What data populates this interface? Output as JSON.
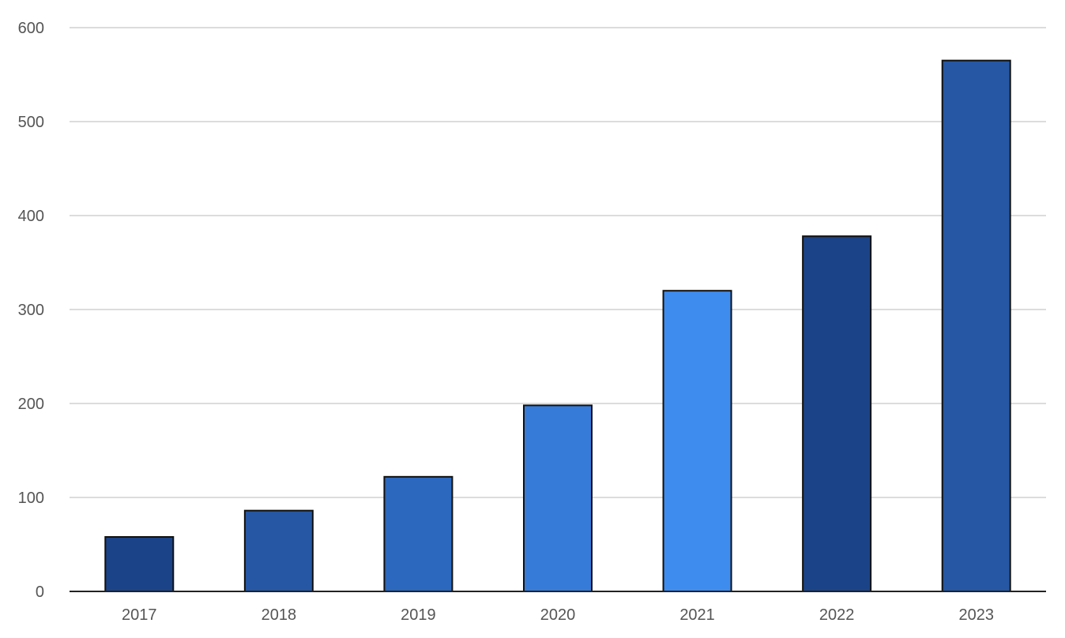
{
  "chart_data": {
    "type": "bar",
    "title": "",
    "xlabel": "",
    "ylabel": "",
    "categories": [
      "2017",
      "2018",
      "2019",
      "2020",
      "2021",
      "2022",
      "2023"
    ],
    "values": [
      58,
      86,
      122,
      198,
      320,
      378,
      565
    ],
    "bar_colors": [
      "#1b4387",
      "#2557a4",
      "#2c68bd",
      "#377bd9",
      "#3f8cef",
      "#1b4387",
      "#2557a4"
    ],
    "ylim": [
      0,
      600
    ],
    "yticks": [
      "0",
      "100",
      "200",
      "300",
      "400",
      "500",
      "600"
    ],
    "grid": true,
    "legend": "none"
  }
}
